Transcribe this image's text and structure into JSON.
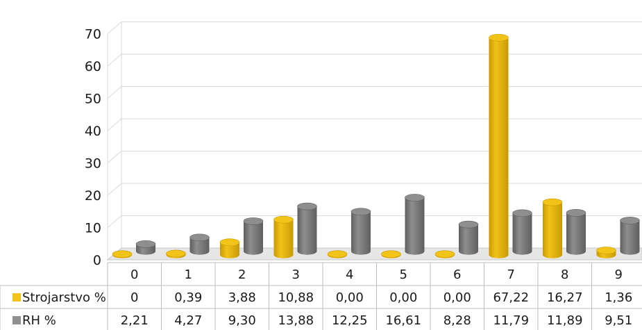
{
  "chart_data": {
    "type": "bar",
    "title": "",
    "xlabel": "",
    "ylabel": "",
    "ylim": [
      0,
      70
    ],
    "yticks": [
      "0",
      "10",
      "20",
      "30",
      "40",
      "50",
      "60",
      "70"
    ],
    "categories": [
      "0",
      "1",
      "2",
      "3",
      "4",
      "5",
      "6",
      "7",
      "8",
      "9"
    ],
    "grid": true,
    "legend": "data table below chart",
    "series": [
      {
        "name": "Strojarstvo %",
        "color": "#f2c318",
        "values": [
          0,
          0.39,
          3.88,
          10.88,
          0.0,
          0.0,
          0.0,
          67.22,
          16.27,
          1.36
        ],
        "labels": [
          "0",
          "0,39",
          "3,88",
          "10,88",
          "0,00",
          "0,00",
          "0,00",
          "67,22",
          "16,27",
          "1,36"
        ]
      },
      {
        "name": "RH %",
        "color": "#8e8e8e",
        "values": [
          2.21,
          4.27,
          9.3,
          13.88,
          12.25,
          16.61,
          8.28,
          11.79,
          11.89,
          9.51
        ],
        "labels": [
          "2,21",
          "4,27",
          "9,30",
          "13,88",
          "12,25",
          "16,61",
          "8,28",
          "11,79",
          "11,89",
          "9,51"
        ]
      }
    ]
  }
}
